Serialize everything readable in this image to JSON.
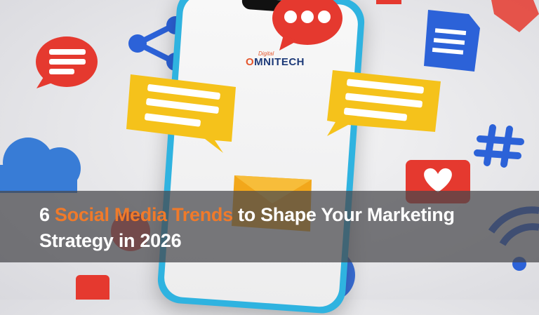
{
  "logo": {
    "top_text": "Digital",
    "o_letter": "O",
    "main_text": "MNITECH"
  },
  "headline": {
    "prefix": "6 ",
    "highlight": "Social Media Trends",
    "suffix_line1": " to Shape Your Marketing",
    "line2": "Strategy in 2026"
  },
  "colors": {
    "highlight": "#f07a2a",
    "phone_frame": "#2fb3e0",
    "bubble_yellow": "#f5c21b",
    "bubble_red": "#e5392f",
    "icon_blue": "#2c62d8"
  },
  "icons": [
    "share-icon",
    "chat-bubble-icon",
    "document-icon",
    "hashtag-icon",
    "heart-icon",
    "envelope-icon",
    "cloud-icon",
    "wifi-icon",
    "gear-icon",
    "play-icon"
  ]
}
